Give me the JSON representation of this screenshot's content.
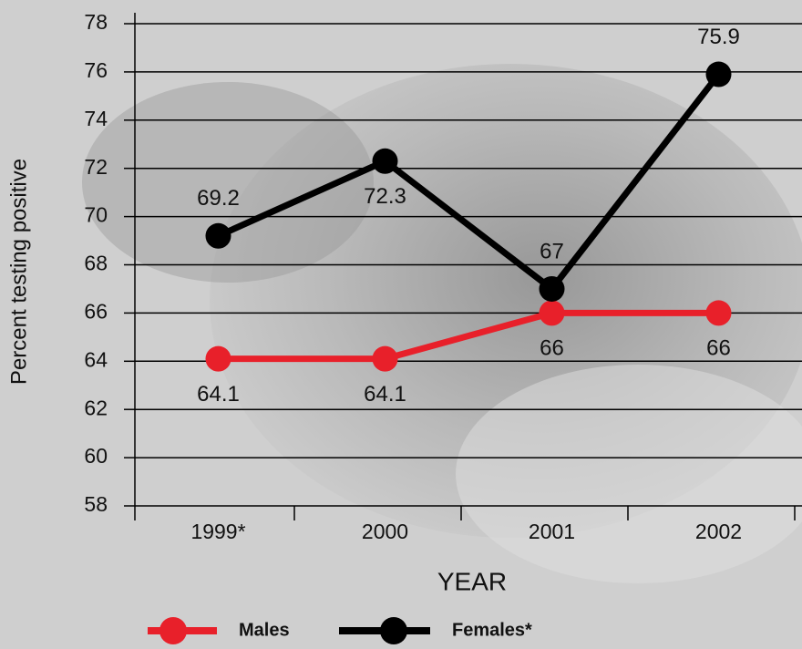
{
  "chart_data": {
    "type": "line",
    "y_label": "Percent testing positive",
    "x_label": "YEAR",
    "categories": [
      "1999*",
      "2000",
      "2001",
      "2002"
    ],
    "series": [
      {
        "name": "Males",
        "color": "#e8202a",
        "values": [
          64.1,
          64.1,
          66,
          66
        ]
      },
      {
        "name": "Females*",
        "color": "#000000",
        "values": [
          69.2,
          72.3,
          67,
          75.9
        ]
      }
    ],
    "ylim": [
      58,
      78
    ],
    "yticks": [
      58,
      60,
      62,
      64,
      66,
      68,
      70,
      72,
      74,
      76,
      78
    ],
    "grid": true
  }
}
